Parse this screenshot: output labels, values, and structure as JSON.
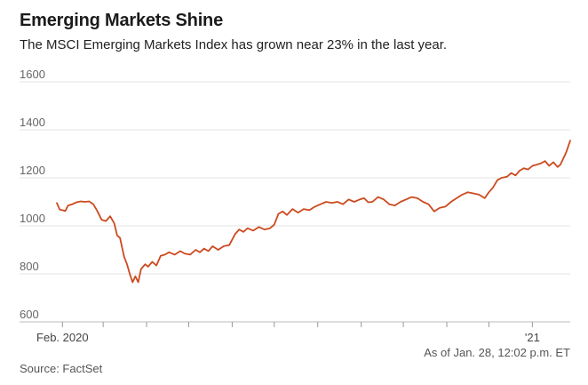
{
  "header": {
    "title": "Emerging Markets Shine",
    "subtitle": "The MSCI Emerging Markets Index has grown near 23% in the last year."
  },
  "footer": {
    "note": "As of Jan. 28, 12:02 p.m. ET",
    "source": "Source: FactSet"
  },
  "colors": {
    "line": "#cc4a1f",
    "grid": "#e3e3e3",
    "axis": "#999999",
    "text": "#666666"
  },
  "chart_data": {
    "type": "line",
    "title": "Emerging Markets Shine",
    "subtitle": "The MSCI Emerging Markets Index has grown near 23% in the last year.",
    "xlabel": "",
    "ylabel": "",
    "ylim": [
      600,
      1600
    ],
    "yticks": [
      600,
      800,
      1000,
      1200,
      1400,
      1600
    ],
    "xlim": [
      "2020-01-28",
      "2021-01-28"
    ],
    "x_tick_labels": [
      {
        "date": "2020-02-01",
        "label": "Feb. 2020"
      },
      {
        "date": "2021-01-01",
        "label": "'21"
      }
    ],
    "x_minor_ticks": [
      "2020-03-01",
      "2020-04-01",
      "2020-05-01",
      "2020-06-01",
      "2020-07-01",
      "2020-08-01",
      "2020-09-01",
      "2020-10-01",
      "2020-11-01",
      "2020-12-01"
    ],
    "grid": true,
    "legend": "none",
    "series": [
      {
        "values": [
          {
            "x": "2020-01-28",
            "y": 1095
          },
          {
            "x": "2020-01-30",
            "y": 1068
          },
          {
            "x": "2020-02-03",
            "y": 1062
          },
          {
            "x": "2020-02-05",
            "y": 1085
          },
          {
            "x": "2020-02-08",
            "y": 1090
          },
          {
            "x": "2020-02-11",
            "y": 1098
          },
          {
            "x": "2020-02-14",
            "y": 1102
          },
          {
            "x": "2020-02-17",
            "y": 1100
          },
          {
            "x": "2020-02-20",
            "y": 1102
          },
          {
            "x": "2020-02-23",
            "y": 1090
          },
          {
            "x": "2020-02-26",
            "y": 1060
          },
          {
            "x": "2020-02-29",
            "y": 1025
          },
          {
            "x": "2020-03-03",
            "y": 1020
          },
          {
            "x": "2020-03-06",
            "y": 1040
          },
          {
            "x": "2020-03-09",
            "y": 1010
          },
          {
            "x": "2020-03-11",
            "y": 960
          },
          {
            "x": "2020-03-13",
            "y": 950
          },
          {
            "x": "2020-03-16",
            "y": 870
          },
          {
            "x": "2020-03-18",
            "y": 840
          },
          {
            "x": "2020-03-20",
            "y": 800
          },
          {
            "x": "2020-03-22",
            "y": 765
          },
          {
            "x": "2020-03-24",
            "y": 790
          },
          {
            "x": "2020-03-26",
            "y": 765
          },
          {
            "x": "2020-03-28",
            "y": 820
          },
          {
            "x": "2020-03-31",
            "y": 840
          },
          {
            "x": "2020-04-02",
            "y": 830
          },
          {
            "x": "2020-04-05",
            "y": 850
          },
          {
            "x": "2020-04-08",
            "y": 835
          },
          {
            "x": "2020-04-11",
            "y": 875
          },
          {
            "x": "2020-04-14",
            "y": 880
          },
          {
            "x": "2020-04-17",
            "y": 890
          },
          {
            "x": "2020-04-21",
            "y": 880
          },
          {
            "x": "2020-04-25",
            "y": 895
          },
          {
            "x": "2020-04-28",
            "y": 885
          },
          {
            "x": "2020-05-02",
            "y": 880
          },
          {
            "x": "2020-05-06",
            "y": 900
          },
          {
            "x": "2020-05-09",
            "y": 890
          },
          {
            "x": "2020-05-12",
            "y": 905
          },
          {
            "x": "2020-05-15",
            "y": 895
          },
          {
            "x": "2020-05-18",
            "y": 915
          },
          {
            "x": "2020-05-22",
            "y": 900
          },
          {
            "x": "2020-05-26",
            "y": 915
          },
          {
            "x": "2020-05-30",
            "y": 920
          },
          {
            "x": "2020-06-03",
            "y": 965
          },
          {
            "x": "2020-06-06",
            "y": 985
          },
          {
            "x": "2020-06-09",
            "y": 975
          },
          {
            "x": "2020-06-12",
            "y": 990
          },
          {
            "x": "2020-06-16",
            "y": 980
          },
          {
            "x": "2020-06-20",
            "y": 995
          },
          {
            "x": "2020-06-24",
            "y": 985
          },
          {
            "x": "2020-06-28",
            "y": 990
          },
          {
            "x": "2020-07-01",
            "y": 1005
          },
          {
            "x": "2020-07-04",
            "y": 1050
          },
          {
            "x": "2020-07-07",
            "y": 1060
          },
          {
            "x": "2020-07-10",
            "y": 1045
          },
          {
            "x": "2020-07-14",
            "y": 1070
          },
          {
            "x": "2020-07-18",
            "y": 1055
          },
          {
            "x": "2020-07-22",
            "y": 1070
          },
          {
            "x": "2020-07-26",
            "y": 1065
          },
          {
            "x": "2020-07-30",
            "y": 1080
          },
          {
            "x": "2020-08-03",
            "y": 1090
          },
          {
            "x": "2020-08-07",
            "y": 1100
          },
          {
            "x": "2020-08-11",
            "y": 1095
          },
          {
            "x": "2020-08-15",
            "y": 1100
          },
          {
            "x": "2020-08-19",
            "y": 1090
          },
          {
            "x": "2020-08-23",
            "y": 1110
          },
          {
            "x": "2020-08-27",
            "y": 1100
          },
          {
            "x": "2020-08-31",
            "y": 1110
          },
          {
            "x": "2020-09-03",
            "y": 1115
          },
          {
            "x": "2020-09-06",
            "y": 1098
          },
          {
            "x": "2020-09-09",
            "y": 1100
          },
          {
            "x": "2020-09-13",
            "y": 1120
          },
          {
            "x": "2020-09-17",
            "y": 1110
          },
          {
            "x": "2020-09-21",
            "y": 1090
          },
          {
            "x": "2020-09-25",
            "y": 1085
          },
          {
            "x": "2020-09-29",
            "y": 1100
          },
          {
            "x": "2020-10-03",
            "y": 1110
          },
          {
            "x": "2020-10-07",
            "y": 1120
          },
          {
            "x": "2020-10-11",
            "y": 1115
          },
          {
            "x": "2020-10-15",
            "y": 1100
          },
          {
            "x": "2020-10-19",
            "y": 1090
          },
          {
            "x": "2020-10-23",
            "y": 1060
          },
          {
            "x": "2020-10-27",
            "y": 1075
          },
          {
            "x": "2020-10-31",
            "y": 1080
          },
          {
            "x": "2020-11-04",
            "y": 1100
          },
          {
            "x": "2020-11-08",
            "y": 1115
          },
          {
            "x": "2020-11-12",
            "y": 1130
          },
          {
            "x": "2020-11-16",
            "y": 1140
          },
          {
            "x": "2020-11-20",
            "y": 1135
          },
          {
            "x": "2020-11-24",
            "y": 1130
          },
          {
            "x": "2020-11-28",
            "y": 1115
          },
          {
            "x": "2020-12-01",
            "y": 1140
          },
          {
            "x": "2020-12-04",
            "y": 1160
          },
          {
            "x": "2020-12-07",
            "y": 1190
          },
          {
            "x": "2020-12-10",
            "y": 1200
          },
          {
            "x": "2020-12-14",
            "y": 1205
          },
          {
            "x": "2020-12-17",
            "y": 1220
          },
          {
            "x": "2020-12-20",
            "y": 1210
          },
          {
            "x": "2020-12-23",
            "y": 1230
          },
          {
            "x": "2020-12-26",
            "y": 1240
          },
          {
            "x": "2020-12-29",
            "y": 1235
          },
          {
            "x": "2021-01-01",
            "y": 1250
          },
          {
            "x": "2021-01-04",
            "y": 1255
          },
          {
            "x": "2021-01-07",
            "y": 1260
          },
          {
            "x": "2021-01-10",
            "y": 1270
          },
          {
            "x": "2021-01-13",
            "y": 1250
          },
          {
            "x": "2021-01-16",
            "y": 1265
          },
          {
            "x": "2021-01-19",
            "y": 1245
          },
          {
            "x": "2021-01-21",
            "y": 1255
          },
          {
            "x": "2021-01-23",
            "y": 1280
          },
          {
            "x": "2021-01-25",
            "y": 1305
          },
          {
            "x": "2021-01-28",
            "y": 1355
          }
        ]
      }
    ]
  }
}
